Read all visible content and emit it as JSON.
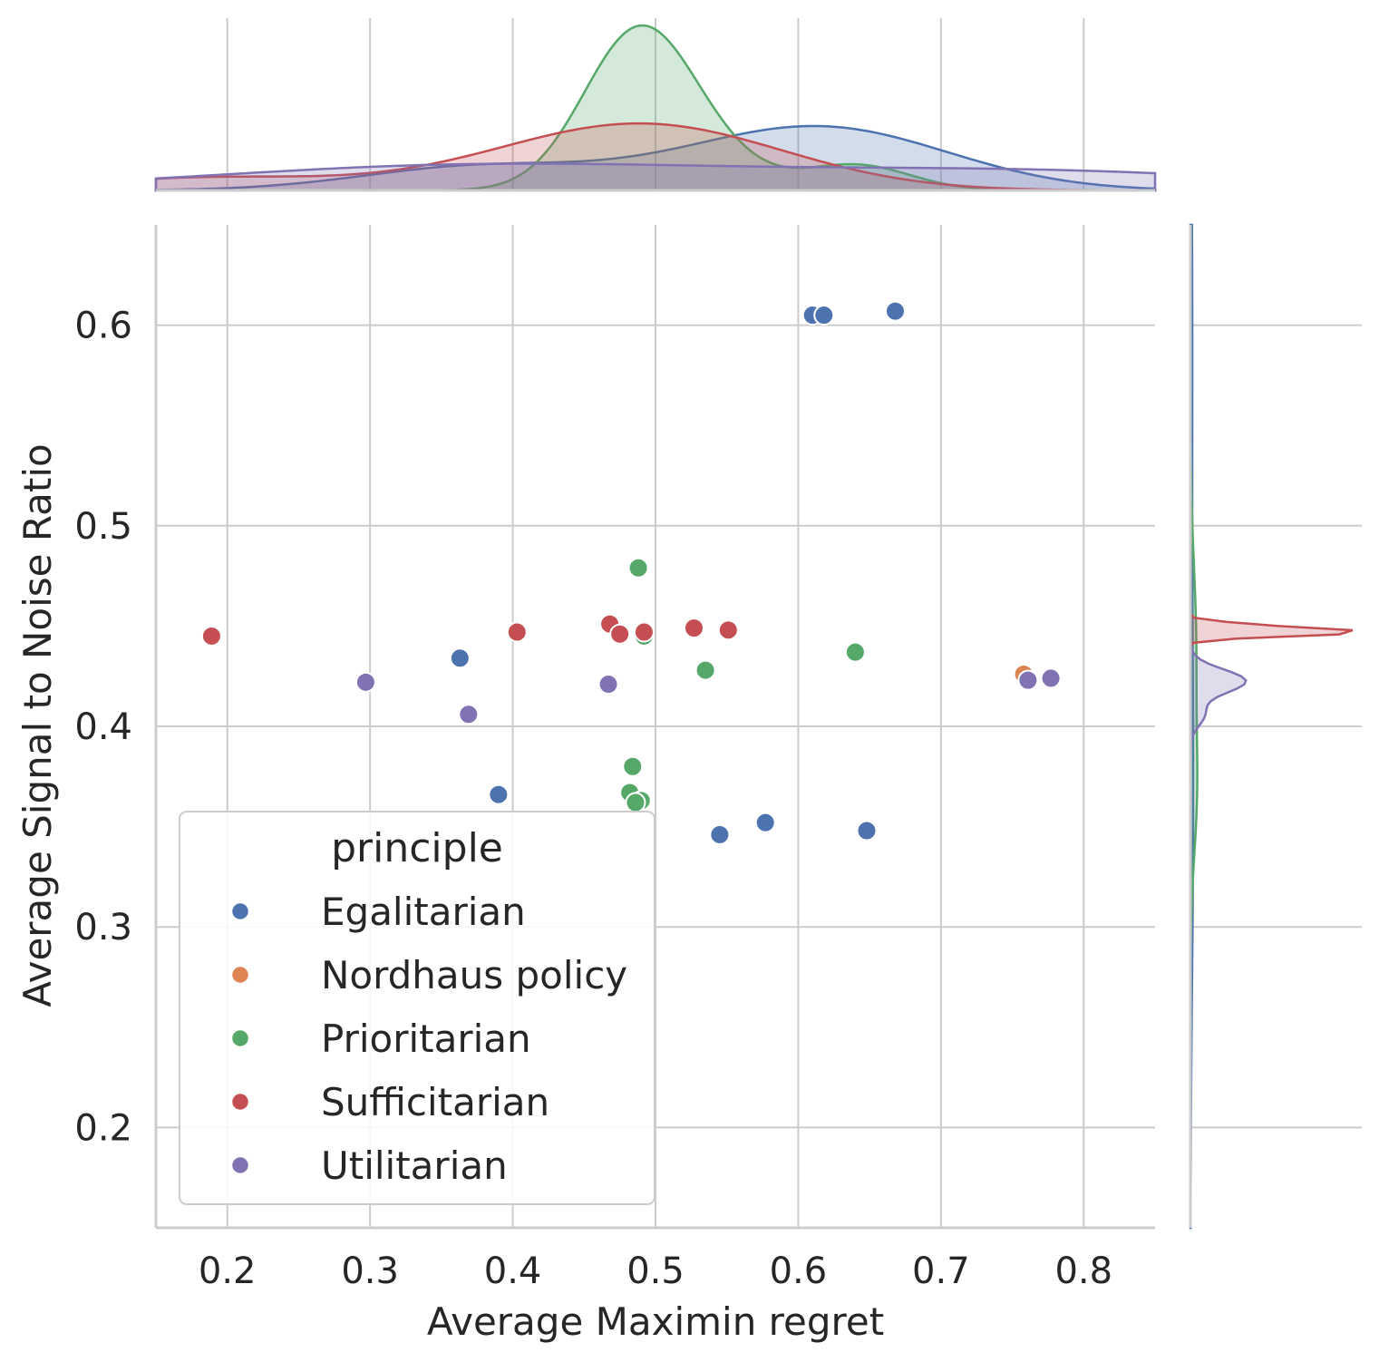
{
  "chart_data": {
    "type": "scatter",
    "title": "",
    "xlabel": "Average Maximin regret",
    "ylabel": "Average Signal to Noise Ratio",
    "xlim": [
      0.15,
      0.85
    ],
    "ylim": [
      0.15,
      0.65
    ],
    "xticks": [
      "0.2",
      "0.3",
      "0.4",
      "0.5",
      "0.6",
      "0.7",
      "0.8"
    ],
    "yticks": [
      "0.2",
      "0.3",
      "0.4",
      "0.5",
      "0.6"
    ],
    "grid": true,
    "legend": {
      "title": "principle",
      "position": "lower-left"
    },
    "marginals": "kde",
    "series": [
      {
        "name": "Egalitarian",
        "color": "#4c72b0",
        "points": [
          [
            0.61,
            0.605
          ],
          [
            0.618,
            0.605
          ],
          [
            0.668,
            0.607
          ],
          [
            0.363,
            0.434
          ],
          [
            0.39,
            0.366
          ],
          [
            0.545,
            0.346
          ],
          [
            0.577,
            0.352
          ],
          [
            0.648,
            0.348
          ]
        ]
      },
      {
        "name": "Nordhaus policy",
        "color": "#dd8452",
        "points": [
          [
            0.758,
            0.426
          ]
        ]
      },
      {
        "name": "Prioritarian",
        "color": "#55a868",
        "points": [
          [
            0.488,
            0.479
          ],
          [
            0.492,
            0.445
          ],
          [
            0.535,
            0.428
          ],
          [
            0.64,
            0.437
          ],
          [
            0.484,
            0.38
          ],
          [
            0.482,
            0.367
          ],
          [
            0.49,
            0.363
          ],
          [
            0.486,
            0.362
          ]
        ]
      },
      {
        "name": "Sufficitarian",
        "color": "#c44e52",
        "points": [
          [
            0.189,
            0.445
          ],
          [
            0.403,
            0.447
          ],
          [
            0.468,
            0.451
          ],
          [
            0.475,
            0.446
          ],
          [
            0.492,
            0.447
          ],
          [
            0.527,
            0.449
          ],
          [
            0.551,
            0.448
          ]
        ]
      },
      {
        "name": "Utilitarian",
        "color": "#8172b3",
        "points": [
          [
            0.297,
            0.422
          ],
          [
            0.369,
            0.406
          ],
          [
            0.467,
            0.421
          ],
          [
            0.761,
            0.423
          ],
          [
            0.777,
            0.424
          ]
        ]
      }
    ]
  }
}
